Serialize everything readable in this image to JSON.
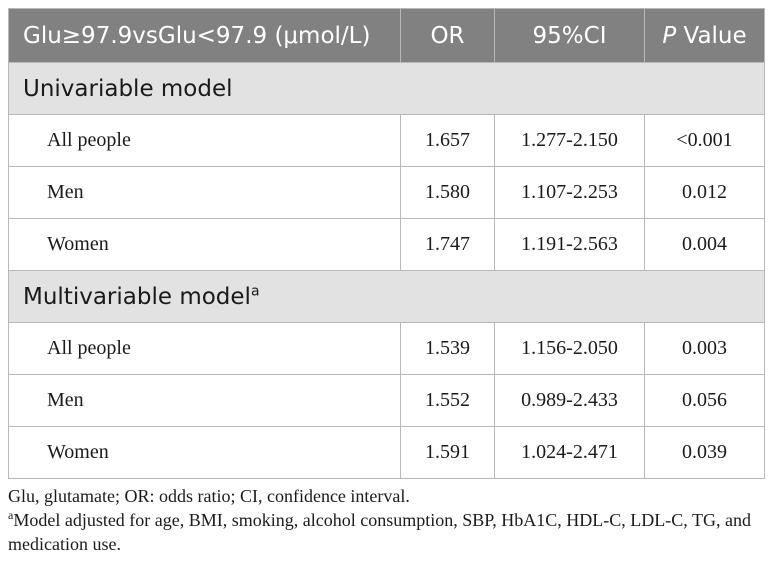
{
  "table": {
    "headers": {
      "group": "Glu≥97.9vsGlu<97.9 (μmol/L)",
      "or": "OR",
      "ci": "95%CI",
      "p_italic": "P",
      "p_rest": " Value"
    },
    "sections": [
      {
        "title": "Univariable model",
        "sup": "",
        "rows": [
          {
            "label": "All people",
            "or": "1.657",
            "ci": "1.277-2.150",
            "p": "<0.001"
          },
          {
            "label": "Men",
            "or": "1.580",
            "ci": "1.107-2.253",
            "p": "0.012"
          },
          {
            "label": "Women",
            "or": "1.747",
            "ci": "1.191-2.563",
            "p": "0.004"
          }
        ]
      },
      {
        "title": "Multivariable model",
        "sup": "a",
        "rows": [
          {
            "label": "All people",
            "or": "1.539",
            "ci": "1.156-2.050",
            "p": "0.003"
          },
          {
            "label": "Men",
            "or": "1.552",
            "ci": "0.989-2.433",
            "p": "0.056"
          },
          {
            "label": "Women",
            "or": "1.591",
            "ci": "1.024-2.471",
            "p": "0.039"
          }
        ]
      }
    ]
  },
  "notes": {
    "line1": "Glu, glutamate; OR: odds ratio; CI, confidence interval.",
    "line2_sup": "a",
    "line2": "Model adjusted for age, BMI, smoking, alcohol consumption, SBP, HbA1C, HDL-C, LDL-C, TG, and medication use."
  },
  "colors": {
    "header_bg": "#818181",
    "section_bg": "#e2e2e2",
    "border": "#b8b8b8"
  }
}
